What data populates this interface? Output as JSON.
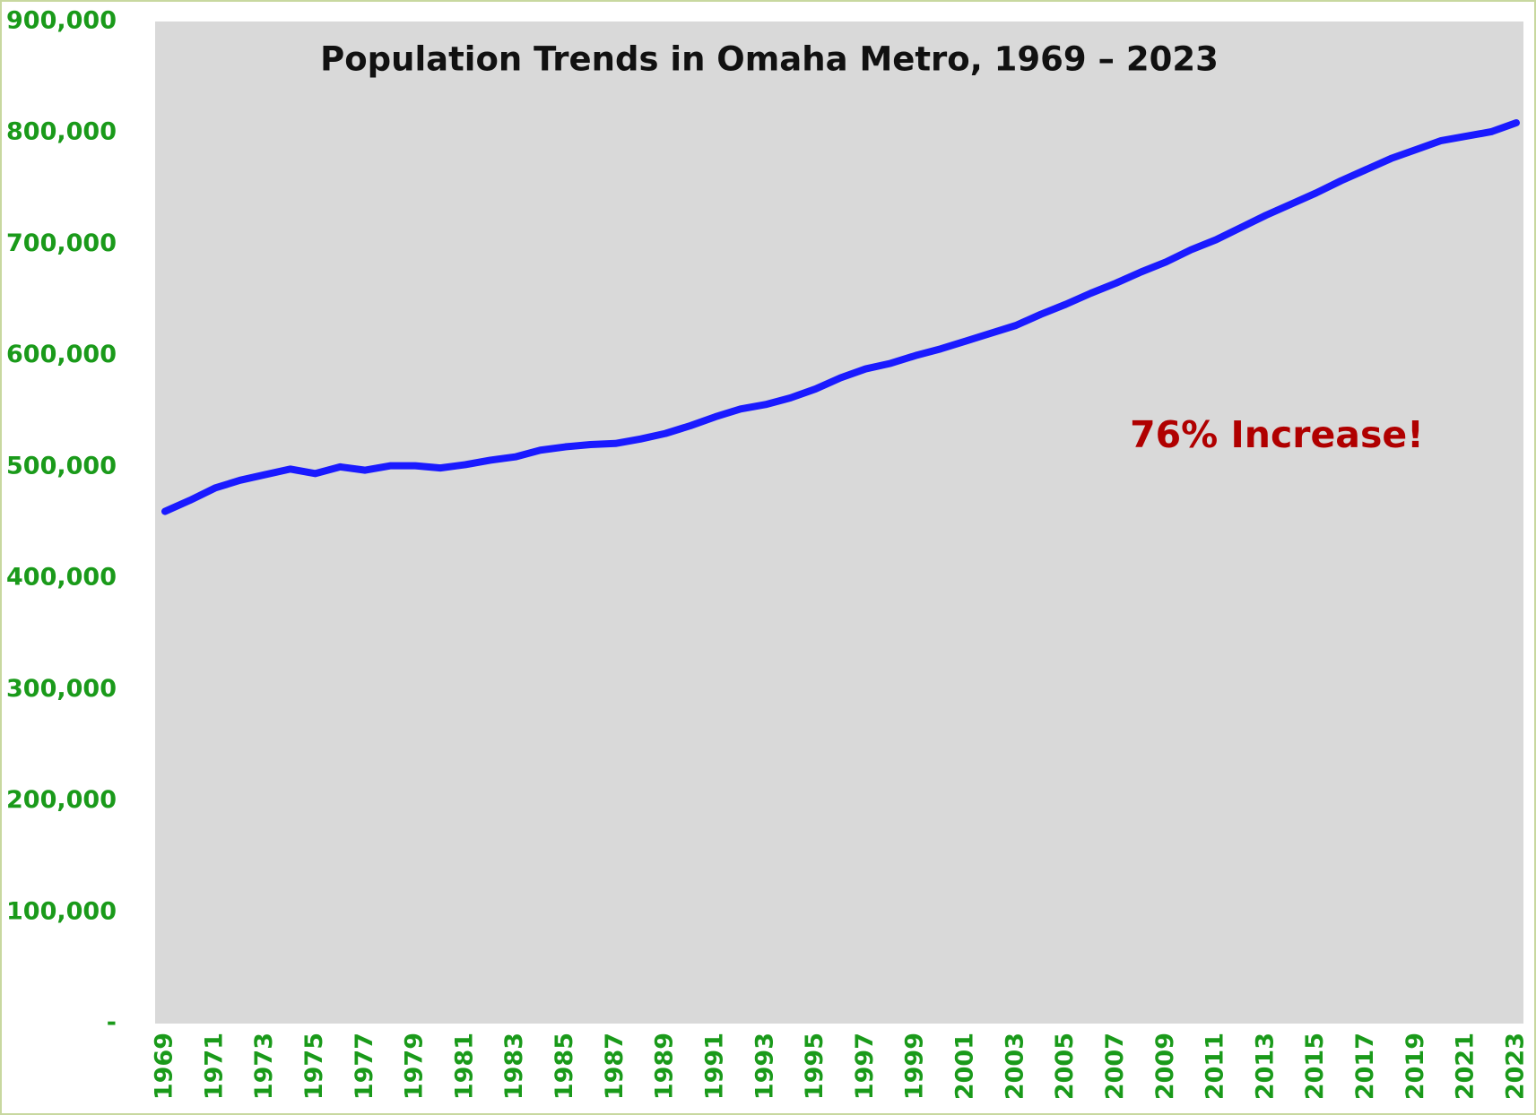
{
  "chart_data": {
    "type": "line",
    "title": "Population Trends in Omaha Metro, 1969 – 2023",
    "annotation": "76% Increase!",
    "categories": [
      "1969",
      null,
      "1971",
      null,
      "1973",
      null,
      "1975",
      null,
      "1977",
      null,
      "1979",
      null,
      "1981",
      null,
      "1983",
      null,
      "1985",
      null,
      "1987",
      null,
      "1989",
      null,
      "1991",
      null,
      "1993",
      null,
      "1995",
      null,
      "1997",
      null,
      "1999",
      null,
      "2001",
      null,
      "2003",
      null,
      "2005",
      null,
      "2007",
      null,
      "2009",
      null,
      "2011",
      null,
      "2013",
      null,
      "2015",
      null,
      "2017",
      null,
      "2019",
      null,
      "2021",
      null,
      "2023"
    ],
    "series": [
      {
        "color": "#1a1aff",
        "values": [
          460000,
          470000,
          481000,
          488000,
          493000,
          498000,
          494000,
          500000,
          497000,
          501000,
          501000,
          499000,
          502000,
          506000,
          509000,
          515000,
          518000,
          520000,
          521000,
          525000,
          530000,
          537000,
          545000,
          552000,
          556000,
          562000,
          570000,
          580000,
          588000,
          593000,
          600000,
          606000,
          613000,
          620000,
          627000,
          637000,
          646000,
          656000,
          665000,
          675000,
          684000,
          695000,
          704000,
          715000,
          726000,
          736000,
          746000,
          757000,
          767000,
          777000,
          785000,
          793000,
          797000,
          801000,
          809000
        ]
      }
    ],
    "ylim": [
      0,
      900000
    ],
    "yticks": [
      {
        "value": 0,
        "label": "-"
      },
      {
        "value": 100000,
        "label": "100,000"
      },
      {
        "value": 200000,
        "label": "200,000"
      },
      {
        "value": 300000,
        "label": "300,000"
      },
      {
        "value": 400000,
        "label": "400,000"
      },
      {
        "value": 500000,
        "label": "500,000"
      },
      {
        "value": 600000,
        "label": "600,000"
      },
      {
        "value": 700000,
        "label": "700,000"
      },
      {
        "value": 800000,
        "label": "800,000"
      },
      {
        "value": 900000,
        "label": "900,000"
      }
    ],
    "grid": false
  }
}
